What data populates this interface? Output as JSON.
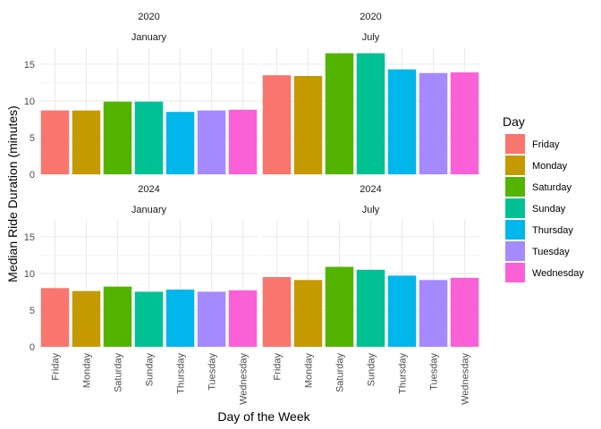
{
  "chart_data": {
    "type": "bar",
    "xlabel": "Day of the Week",
    "ylabel": "Median Ride Duration (minutes)",
    "ylim": [
      0,
      17.3
    ],
    "yticks": [
      0,
      5,
      10,
      15
    ],
    "grid": true,
    "legend": {
      "title": "Day",
      "placement": "right",
      "entries": [
        "Friday",
        "Monday",
        "Saturday",
        "Sunday",
        "Thursday",
        "Tuesday",
        "Wednesday"
      ]
    },
    "colors": {
      "Friday": "#F8766D",
      "Monday": "#C49A00",
      "Saturday": "#53B400",
      "Sunday": "#00C094",
      "Thursday": "#00B6EB",
      "Tuesday": "#A58AFF",
      "Wednesday": "#FB61D7"
    },
    "categories": [
      "Friday",
      "Monday",
      "Saturday",
      "Sunday",
      "Thursday",
      "Tuesday",
      "Wednesday"
    ],
    "facets": [
      {
        "year": "2020",
        "month": "January",
        "values": [
          8.7,
          8.7,
          9.9,
          9.9,
          8.5,
          8.7,
          8.8
        ]
      },
      {
        "year": "2020",
        "month": "July",
        "values": [
          13.5,
          13.4,
          16.5,
          16.5,
          14.3,
          13.8,
          13.9
        ]
      },
      {
        "year": "2024",
        "month": "January",
        "values": [
          8.0,
          7.6,
          8.2,
          7.5,
          7.8,
          7.5,
          7.7
        ]
      },
      {
        "year": "2024",
        "month": "July",
        "values": [
          9.5,
          9.1,
          10.9,
          10.5,
          9.7,
          9.1,
          9.4
        ]
      }
    ]
  }
}
